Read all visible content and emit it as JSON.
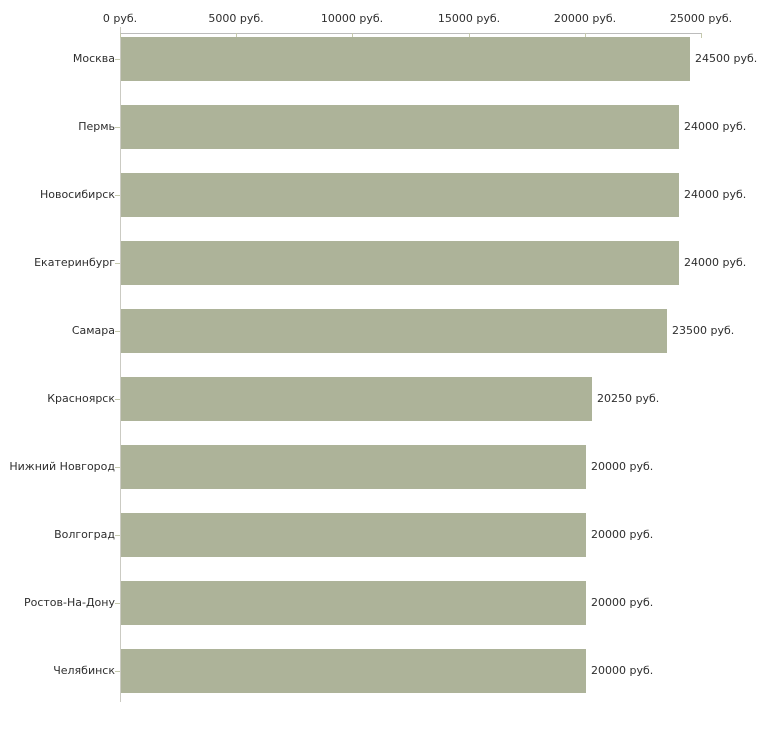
{
  "chart_data": {
    "type": "bar",
    "orientation": "horizontal",
    "title": "",
    "categories": [
      "Москва",
      "Пермь",
      "Новосибирск",
      "Екатеринбург",
      "Самара",
      "Красноярск",
      "Нижний Новгород",
      "Волгоград",
      "Ростов-На-Дону",
      "Челябинск"
    ],
    "values": [
      24500,
      24000,
      24000,
      24000,
      23500,
      20250,
      20000,
      20000,
      20000,
      20000
    ],
    "value_labels": [
      "24500 руб.",
      "24000 руб.",
      "24000 руб.",
      "24000 руб.",
      "23500 руб.",
      "20250 руб.",
      "20000 руб.",
      "20000 руб.",
      "20000 руб.",
      "20000 руб."
    ],
    "axis": {
      "position": "top",
      "unit": "руб.",
      "tick_values": [
        0,
        5000,
        10000,
        15000,
        20000,
        25000
      ],
      "tick_labels": [
        "0 руб.",
        "5000 руб.",
        "10000 руб.",
        "15000 руб.",
        "20000 руб.",
        "25000 руб."
      ],
      "min": 0,
      "max": 25000
    },
    "grid": false,
    "legend": false,
    "colors": {
      "bar": "#adb399",
      "axis_line_horizontal": "#bcbcbc",
      "axis_line_vertical": "#cbcbc3",
      "tick": "#c5c9ad",
      "text": "#2e2e2e",
      "background": "#ffffff"
    }
  }
}
